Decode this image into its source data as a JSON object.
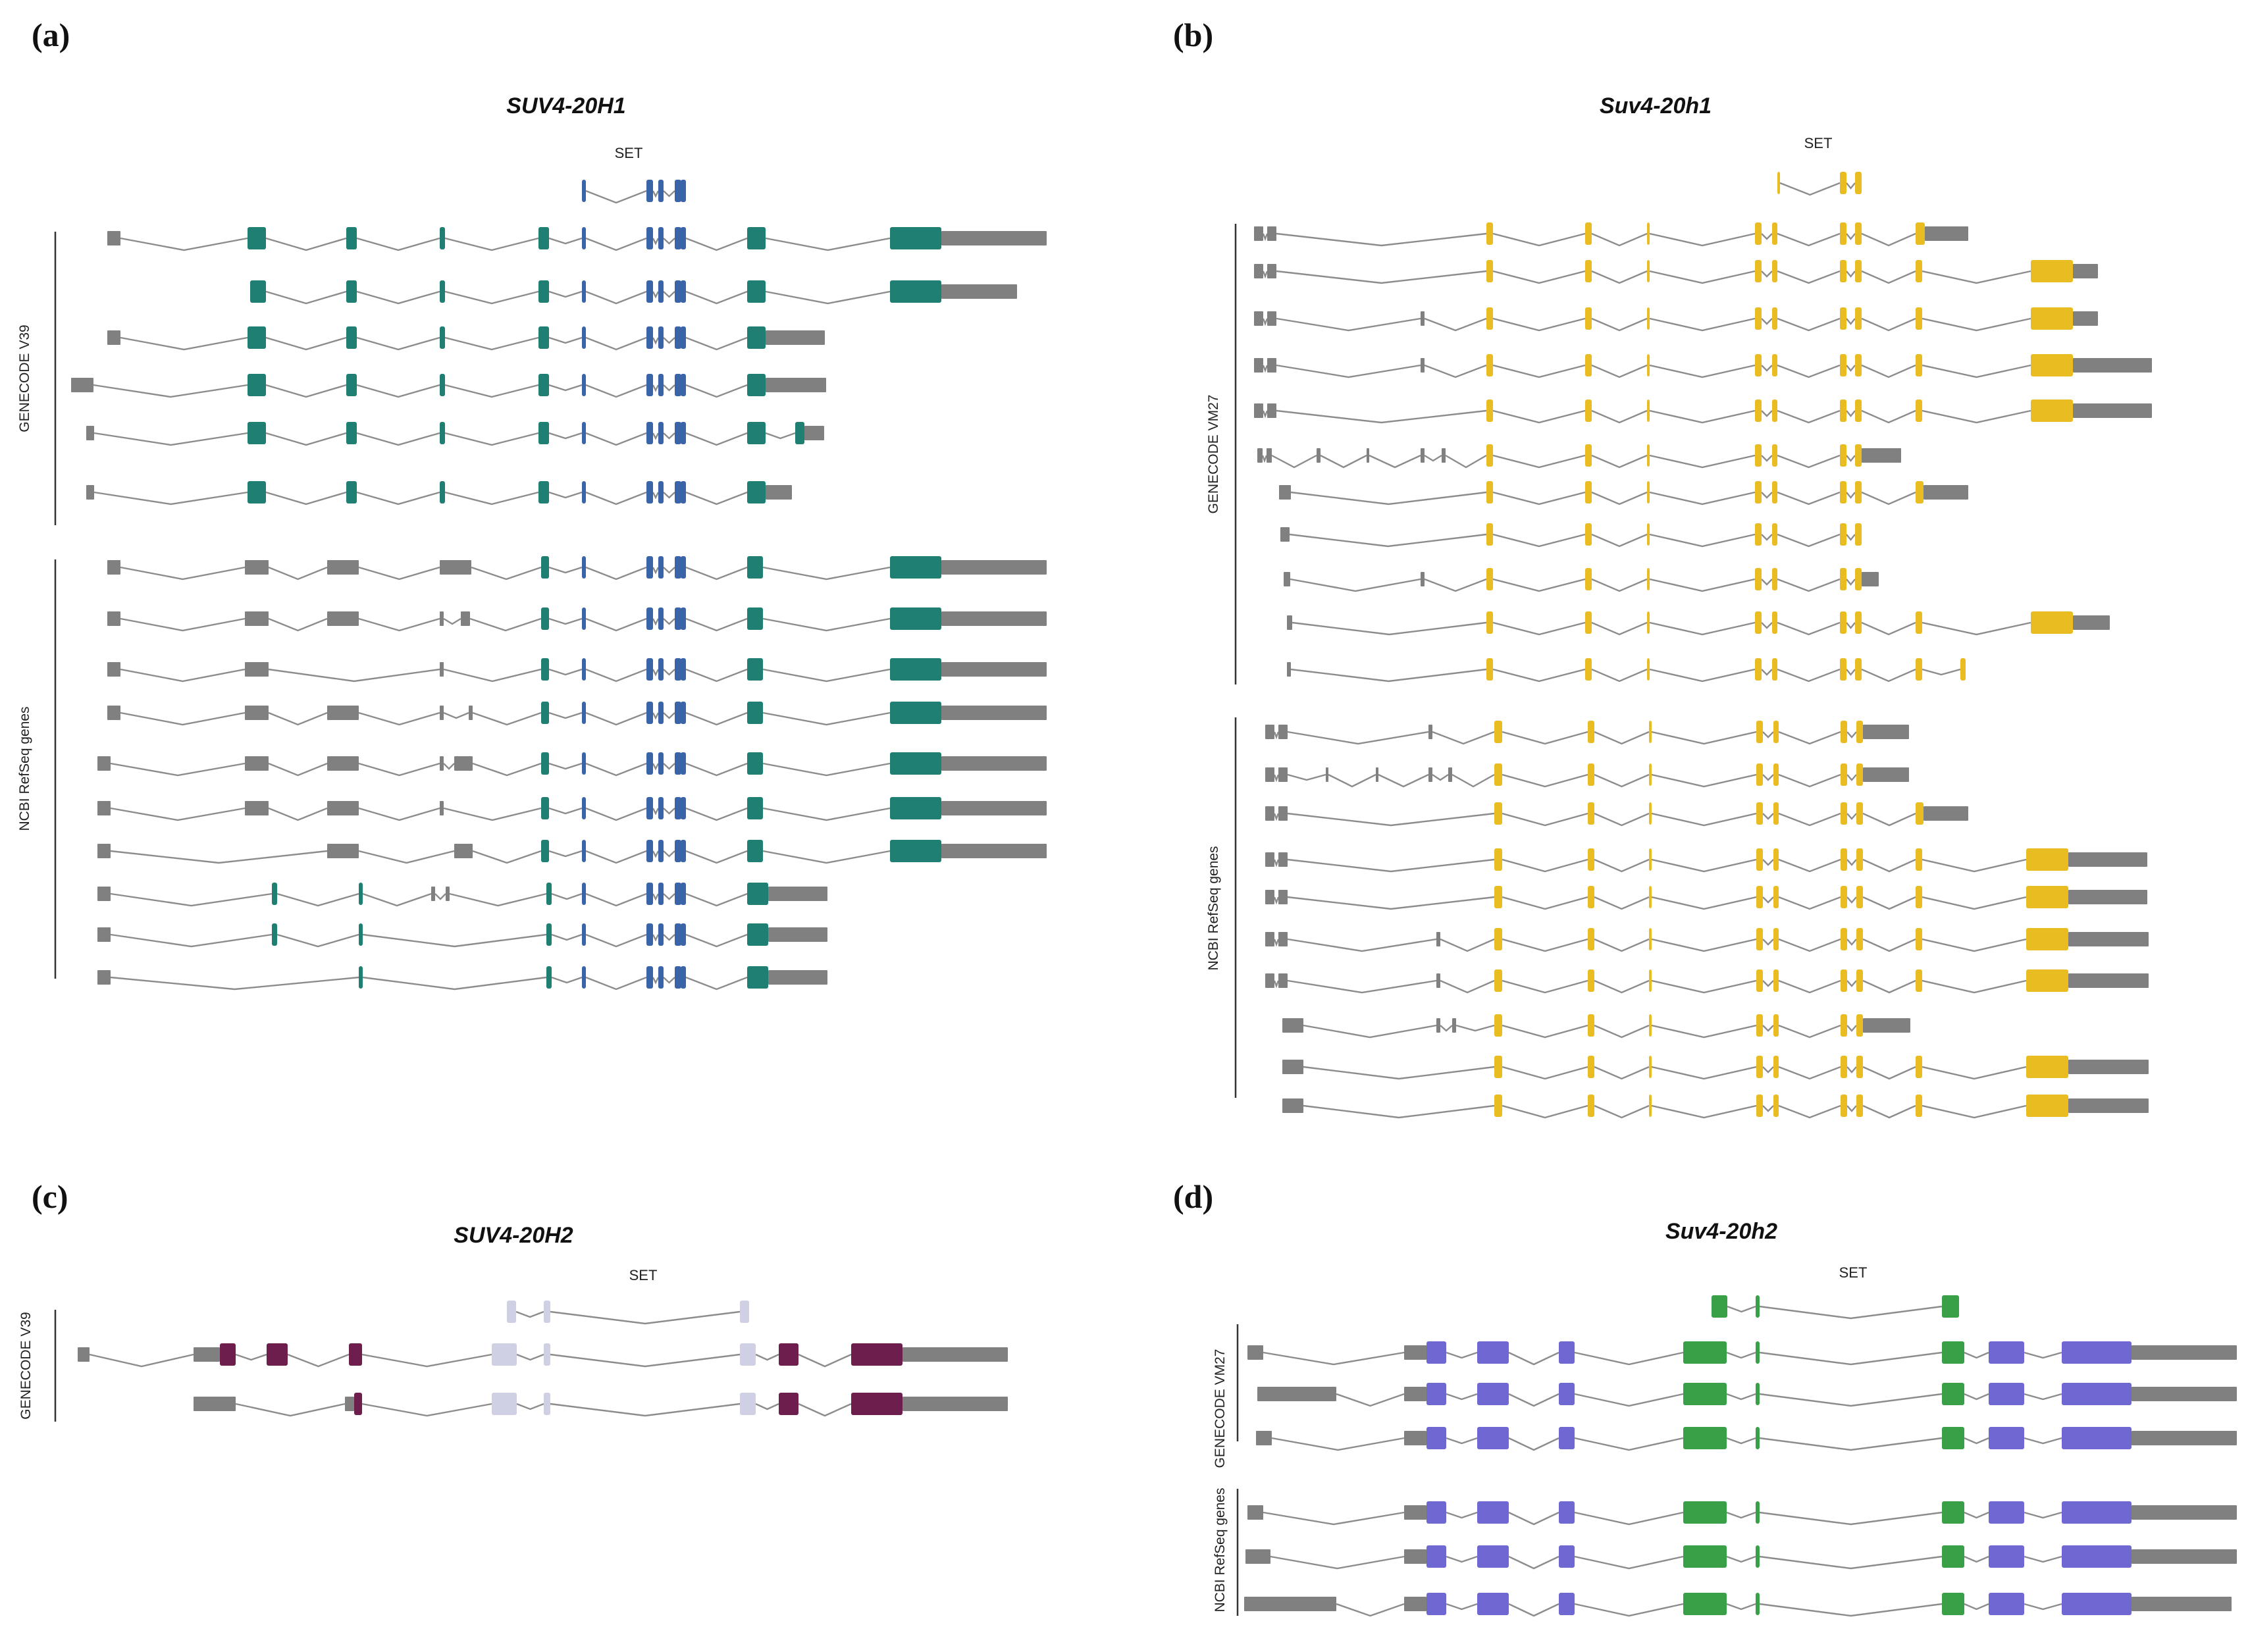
{
  "colors": {
    "utr": "#808080",
    "intron": "#8c8c8c",
    "panel_a": "#1f7f73",
    "panel_a_set": "#3a64a8",
    "panel_b": "#e9bd22",
    "panel_c": "#6d1e4c",
    "panel_c_set": "#cfd0e4",
    "panel_d_green": "#3aa048",
    "panel_d_purple": "#6f68d3"
  },
  "panels": {
    "a": {
      "letter": "(a)",
      "title": "SUV4-20H1",
      "set_label": "SET",
      "groups": [
        "GENECODE V39",
        "NCBI RefSeq genes"
      ]
    },
    "b": {
      "letter": "(b)",
      "title": "Suv4-20h1",
      "set_label": "SET",
      "groups": [
        "GENECODE VM27",
        "NCBI RefSeq genes"
      ]
    },
    "c": {
      "letter": "(c)",
      "title": "SUV4-20H2",
      "set_label": "SET",
      "groups": [
        "GENECODE V39"
      ]
    },
    "d": {
      "letter": "(d)",
      "title": "Suv4-20h2",
      "set_label": "SET",
      "groups": [
        "GENECODE VM27",
        "NCBI RefSeq genes"
      ]
    }
  }
}
